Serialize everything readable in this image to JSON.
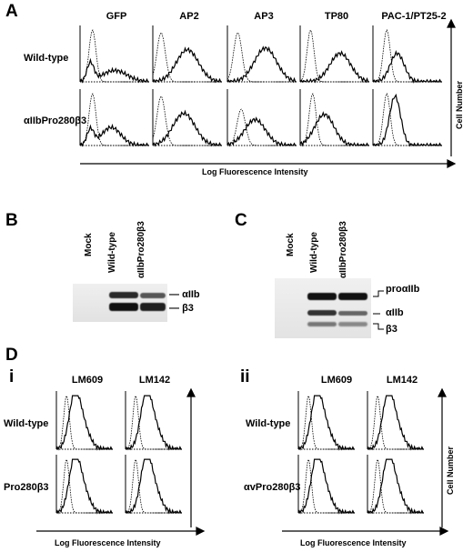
{
  "panel_a": {
    "letter": "A",
    "columns": [
      "GFP",
      "AP2",
      "AP3",
      "TP80",
      "PAC-1/PT25-2"
    ],
    "rows": [
      "Wild-type",
      "αIIbPro280β3"
    ],
    "x_axis_label": "Log Fluorescence Intensity",
    "y_axis_label": "Cell Number"
  },
  "panel_b": {
    "letter": "B",
    "lanes": [
      "Mock",
      "Wild-type",
      "αIIbPro280β3"
    ],
    "bands": [
      "αIIb",
      "β3"
    ]
  },
  "panel_c": {
    "letter": "C",
    "lanes": [
      "Mock",
      "Wild-type",
      "αIIbPro280β3"
    ],
    "bands": [
      "proαIIb",
      "αIIb",
      "β3"
    ]
  },
  "panel_d": {
    "letter": "D",
    "sub_i": {
      "letter": "i",
      "columns": [
        "LM609",
        "LM142"
      ],
      "rows": [
        "Wild-type",
        "Pro280β3"
      ],
      "x_axis_label": "Log Fluorescence Intensity"
    },
    "sub_ii": {
      "letter": "ii",
      "columns": [
        "LM609",
        "LM142"
      ],
      "rows": [
        "Wild-type",
        "αvPro280β3"
      ],
      "x_axis_label": "Log Fluorescence Intensity",
      "y_axis_label": "Cell Number"
    }
  },
  "colors": {
    "ink": "#000000",
    "gel_bg": "#e6e6e6",
    "band": "#1a1a1a"
  }
}
